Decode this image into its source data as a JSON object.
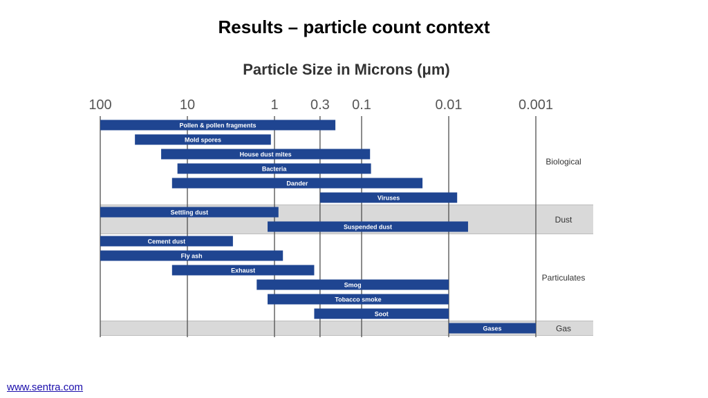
{
  "slide": {
    "title": "Results – particle count context",
    "footer_link": "www.sentra.com"
  },
  "colors": {
    "bar": "#1f4591",
    "band": "#d9d9d9",
    "axis_line": "#4d4d4d",
    "text": "#333333"
  },
  "chart_data": {
    "type": "bar",
    "orientation": "horizontal",
    "title": "Particle Size in Microns (μm)",
    "x_scale": "log",
    "x_direction": "decreasing",
    "xlim": [
      100,
      0.001
    ],
    "ticks": [
      {
        "value": 100,
        "label": "100"
      },
      {
        "value": 10,
        "label": "10"
      },
      {
        "value": 1,
        "label": "1"
      },
      {
        "value": 0.3,
        "label": "0.3"
      },
      {
        "value": 0.1,
        "label": "0.1"
      },
      {
        "value": 0.01,
        "label": "0.01"
      },
      {
        "value": 0.001,
        "label": "0.001"
      }
    ],
    "grid": true,
    "groups": [
      {
        "name": "Biological",
        "shaded": false,
        "rows": [
          {
            "label": "Pollen & pollen fragments",
            "max": 100,
            "min": 0.2
          },
          {
            "label": "Mold spores",
            "max": 40,
            "min": 1.1
          },
          {
            "label": "House dust mites",
            "max": 20,
            "min": 0.08
          },
          {
            "label": "Bacteria",
            "max": 13,
            "min": 0.078
          },
          {
            "label": "Dander",
            "max": 15,
            "min": 0.02
          },
          {
            "label": "Viruses",
            "max": 0.3,
            "min": 0.008
          }
        ]
      },
      {
        "name": "Dust",
        "shaded": true,
        "rows": [
          {
            "label": "Settling dust",
            "max": 100,
            "min": 0.9
          },
          {
            "label": "Suspended dust",
            "max": 1.2,
            "min": 0.006
          }
        ]
      },
      {
        "name": "Particulates",
        "shaded": false,
        "rows": [
          {
            "label": "Cement dust",
            "max": 100,
            "min": 3
          },
          {
            "label": "Fly ash",
            "max": 100,
            "min": 0.8
          },
          {
            "label": "Exhaust",
            "max": 15,
            "min": 0.35
          },
          {
            "label": "Smog",
            "max": 1.6,
            "min": 0.01
          },
          {
            "label": "Tobacco smoke",
            "max": 1.2,
            "min": 0.01
          },
          {
            "label": "Soot",
            "max": 0.35,
            "min": 0.01
          }
        ]
      },
      {
        "name": "Gas",
        "shaded": true,
        "rows": [
          {
            "label": "Gases",
            "max": 0.01,
            "min": 0.001
          }
        ]
      }
    ]
  }
}
